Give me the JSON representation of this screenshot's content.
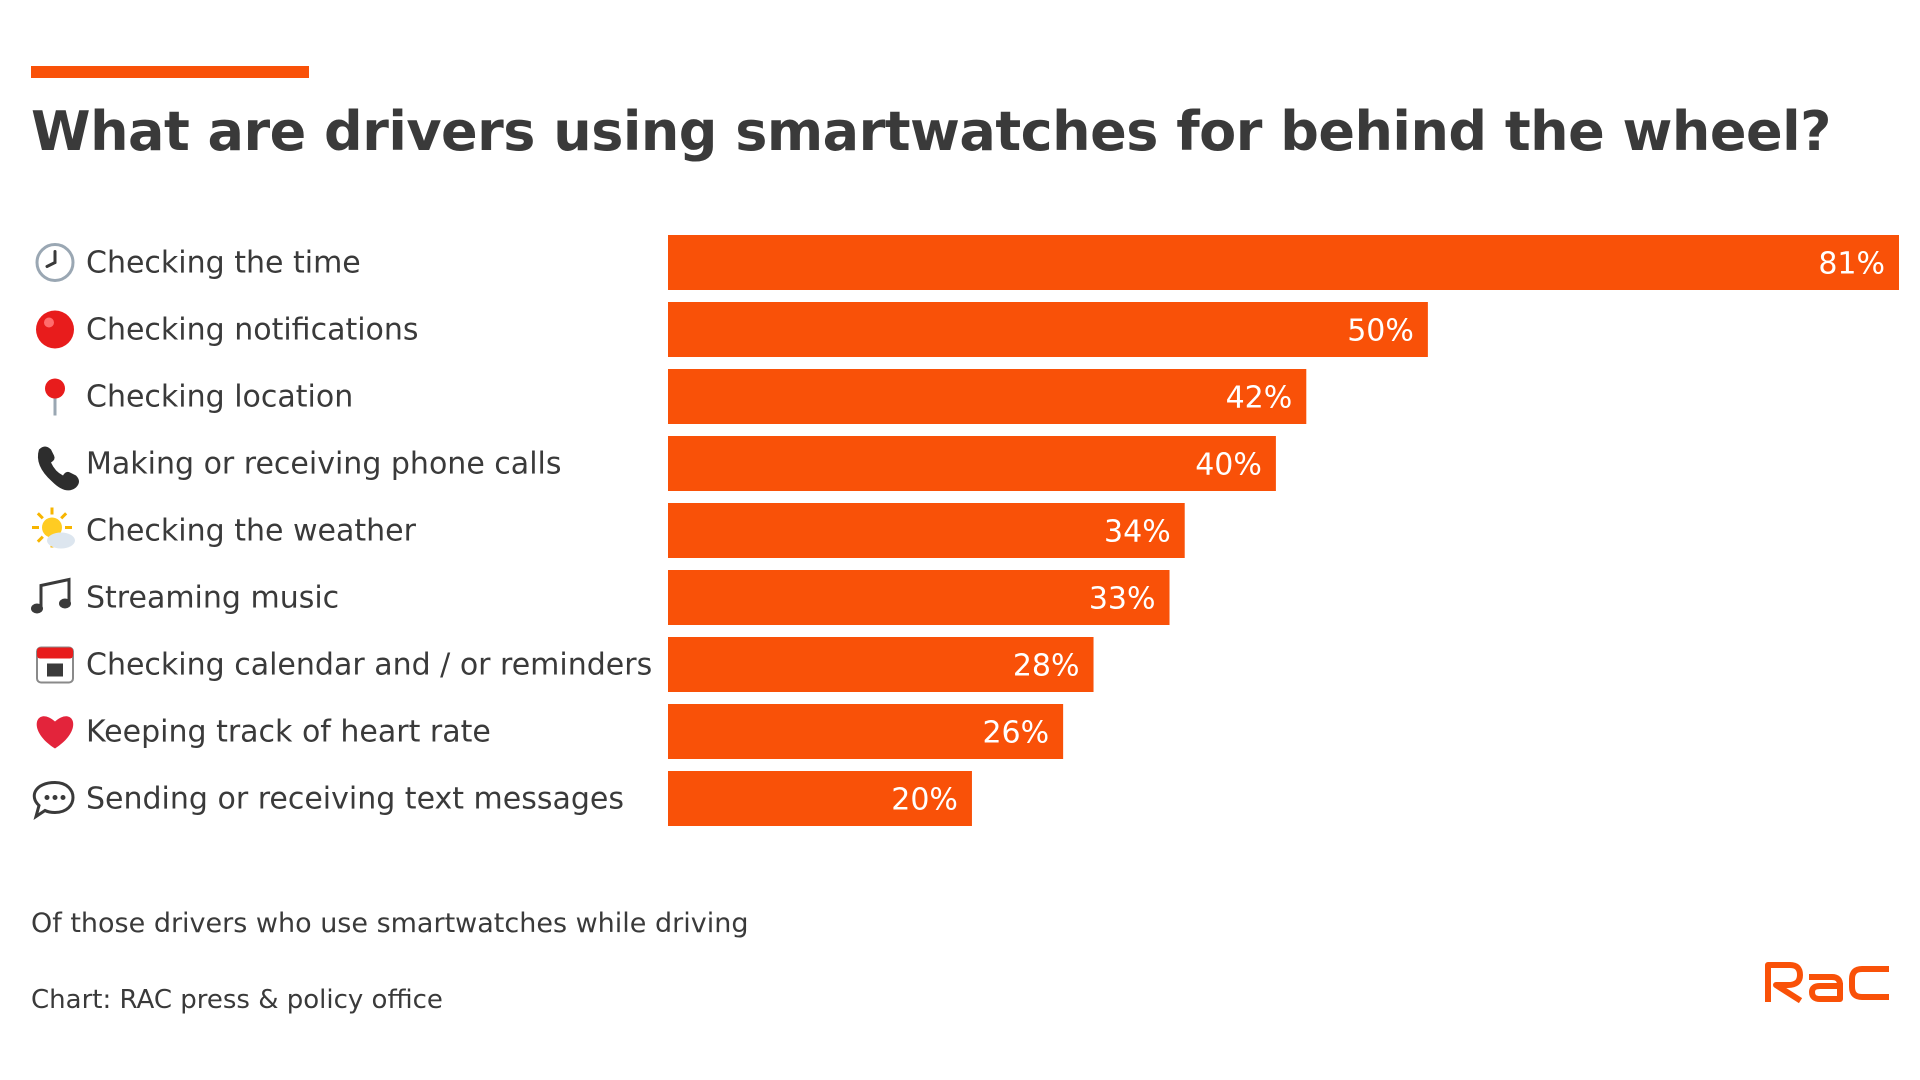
{
  "chart_data": {
    "type": "bar",
    "orientation": "horizontal",
    "title": "What are drivers using smartwatches for behind the wheel?",
    "categories": [
      "Checking the time",
      "Checking notifications",
      "Checking location",
      "Making or receiving phone calls",
      "Checking the weather",
      "Streaming music",
      "Checking calendar and / or reminders",
      "Keeping track of heart rate",
      "Sending or receiving text messages"
    ],
    "icons": [
      "clock-icon",
      "red-circle-icon",
      "location-pin-icon",
      "phone-icon",
      "sun-behind-cloud-icon",
      "music-notes-icon",
      "calendar-icon",
      "red-heart-icon",
      "speech-bubble-icon"
    ],
    "values": [
      81,
      50,
      42,
      40,
      34,
      33,
      28,
      26,
      20
    ],
    "value_labels": [
      "81%",
      "50%",
      "42%",
      "40%",
      "34%",
      "33%",
      "28%",
      "26%",
      "20%"
    ],
    "unit": "%",
    "xlim": [
      0,
      81
    ],
    "grid": false,
    "bar_color": "#f95108"
  },
  "note": "Of those drivers who use smartwatches while driving",
  "source": "Chart: RAC press & policy office",
  "brand": {
    "logo_text": "RAC",
    "accent_color": "#f95108"
  }
}
